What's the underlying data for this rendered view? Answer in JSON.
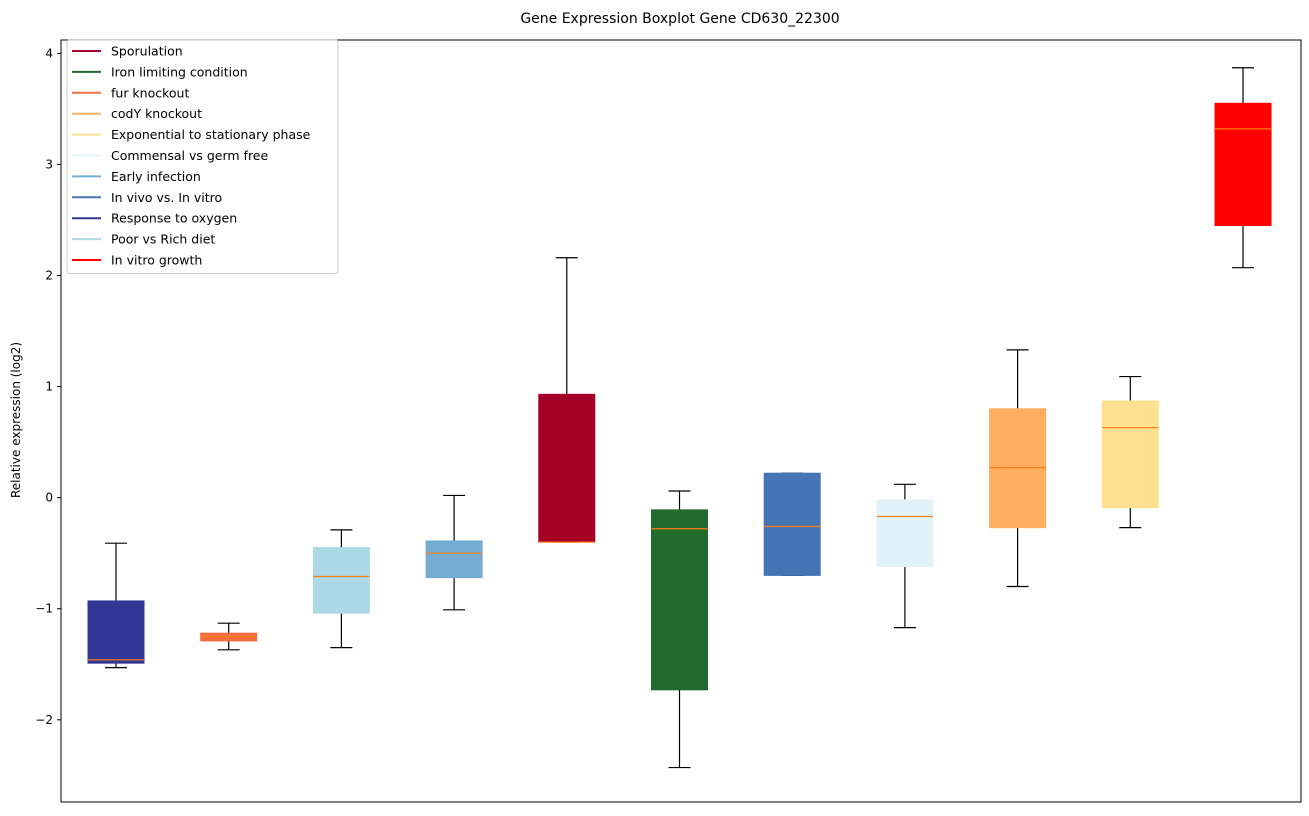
{
  "chart_data": {
    "type": "boxplot",
    "title": "Gene Expression Boxplot Gene CD630_22300",
    "xlabel": "",
    "ylabel": "Relative expression (log2)",
    "ylim": [
      -2.74,
      4.12
    ],
    "yticks": [
      -2,
      -1,
      0,
      1,
      2,
      3,
      4
    ],
    "ytick_labels": [
      "−2",
      "−1",
      "0",
      "1",
      "2",
      "3",
      "4"
    ],
    "grid": false,
    "legend_position": "top-left",
    "median_color": "#ff7f0e",
    "legend": [
      {
        "label": "Sporulation",
        "color": "#a50026"
      },
      {
        "label": "Iron limiting condition",
        "color": "#216b2e"
      },
      {
        "label": "fur knockout",
        "color": "#f46d43"
      },
      {
        "label": "codY knockout",
        "color": "#fdae61"
      },
      {
        "label": "Exponential to stationary phase",
        "color": "#fee090"
      },
      {
        "label": "Commensal vs germ free",
        "color": "#e0f3f8"
      },
      {
        "label": "Early infection",
        "color": "#74add1"
      },
      {
        "label": "In vivo vs. In vitro",
        "color": "#4575b4"
      },
      {
        "label": "Response to oxygen",
        "color": "#313695"
      },
      {
        "label": "Poor vs Rich diet",
        "color": "#add8e6"
      },
      {
        "label": "In vitro growth",
        "color": "#ff0000"
      }
    ],
    "series": [
      {
        "name": "Response to oxygen",
        "color": "#313695",
        "whislo": -1.53,
        "q1": -1.49,
        "med": -1.46,
        "q3": -0.93,
        "whishi": -0.41
      },
      {
        "name": "fur knockout",
        "color": "#f46d43",
        "whislo": -1.37,
        "q1": -1.29,
        "med": -1.25,
        "q3": -1.22,
        "whishi": -1.13
      },
      {
        "name": "Poor vs Rich diet",
        "color": "#add8e6",
        "whislo": -1.35,
        "q1": -1.04,
        "med": -0.71,
        "q3": -0.45,
        "whishi": -0.29
      },
      {
        "name": "Early infection",
        "color": "#74add1",
        "whislo": -1.01,
        "q1": -0.72,
        "med": -0.5,
        "q3": -0.39,
        "whishi": 0.02
      },
      {
        "name": "Sporulation",
        "color": "#a50026",
        "whislo": -0.4,
        "q1": -0.4,
        "med": -0.4,
        "q3": 0.93,
        "whishi": 2.16
      },
      {
        "name": "Iron limiting condition",
        "color": "#216b2e",
        "whislo": -2.43,
        "q1": -1.73,
        "med": -0.28,
        "q3": -0.11,
        "whishi": 0.06
      },
      {
        "name": "In vivo vs. In vitro",
        "color": "#4575b4",
        "whislo": -0.7,
        "q1": -0.7,
        "med": -0.26,
        "q3": 0.22,
        "whishi": 0.22
      },
      {
        "name": "Commensal vs germ free",
        "color": "#e0f3f8",
        "whislo": -1.17,
        "q1": -0.62,
        "med": -0.17,
        "q3": -0.02,
        "whishi": 0.12
      },
      {
        "name": "codY knockout",
        "color": "#fdae61",
        "whislo": -0.8,
        "q1": -0.27,
        "med": 0.27,
        "q3": 0.8,
        "whishi": 1.33
      },
      {
        "name": "Exponential to stationary phase",
        "color": "#fee090",
        "whislo": -0.27,
        "q1": -0.09,
        "med": 0.63,
        "q3": 0.87,
        "whishi": 1.09
      },
      {
        "name": "In vitro growth",
        "color": "#ff0000",
        "whislo": 2.07,
        "q1": 2.45,
        "med": 3.32,
        "q3": 3.55,
        "whishi": 3.87
      }
    ]
  }
}
